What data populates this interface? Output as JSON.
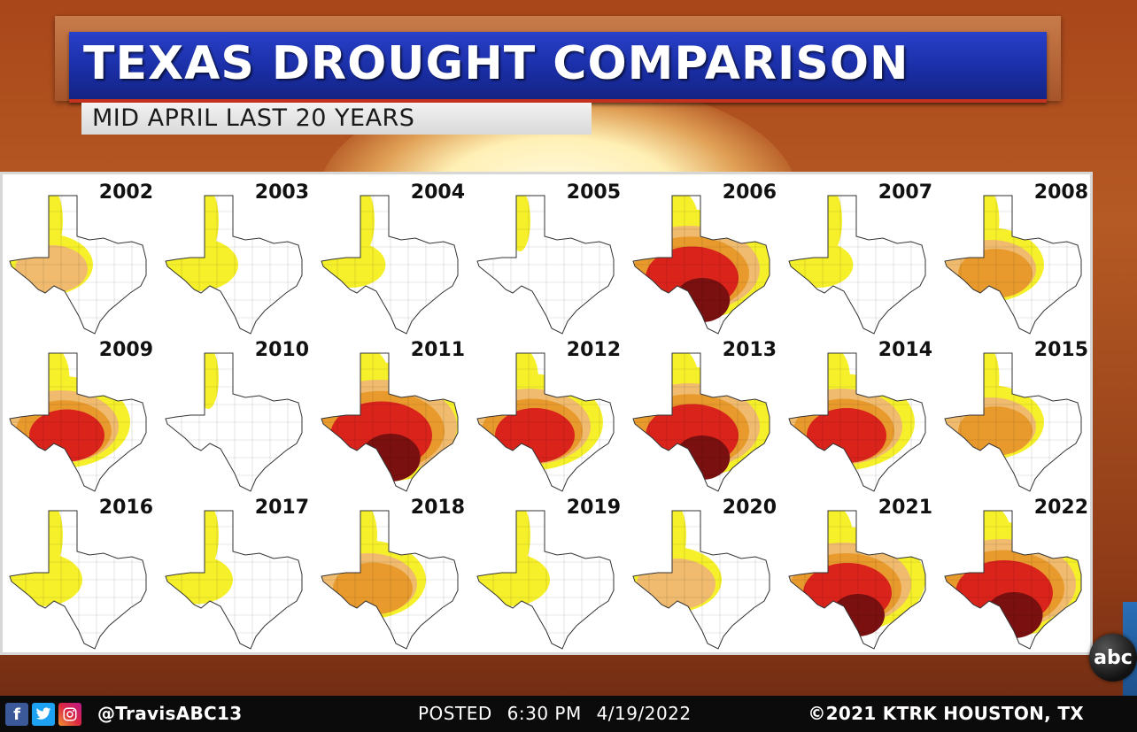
{
  "header": {
    "title": "TEXAS DROUGHT COMPARISON",
    "subtitle": "MID APRIL LAST 20 YEARS"
  },
  "maps": [
    {
      "year": "2002",
      "level": 0.3
    },
    {
      "year": "2003",
      "level": 0.2
    },
    {
      "year": "2004",
      "level": 0.12
    },
    {
      "year": "2005",
      "level": 0.05
    },
    {
      "year": "2006",
      "level": 0.85
    },
    {
      "year": "2007",
      "level": 0.12
    },
    {
      "year": "2008",
      "level": 0.45
    },
    {
      "year": "2009",
      "level": 0.65
    },
    {
      "year": "2010",
      "level": 0.03
    },
    {
      "year": "2011",
      "level": 0.95
    },
    {
      "year": "2012",
      "level": 0.7
    },
    {
      "year": "2013",
      "level": 0.85
    },
    {
      "year": "2014",
      "level": 0.7
    },
    {
      "year": "2015",
      "level": 0.45
    },
    {
      "year": "2016",
      "level": 0.2
    },
    {
      "year": "2017",
      "level": 0.15
    },
    {
      "year": "2018",
      "level": 0.5
    },
    {
      "year": "2019",
      "level": 0.2
    },
    {
      "year": "2020",
      "level": 0.35
    },
    {
      "year": "2021",
      "level": 0.8
    },
    {
      "year": "2022",
      "level": 0.9
    }
  ],
  "colors": {
    "none": "#ffffff",
    "d0": "#f5f02a",
    "d1": "#f0bb6e",
    "d2": "#e89a2c",
    "d3": "#d9231b",
    "d4": "#7a1010",
    "title_bar": "#1f34b8",
    "accent_red": "#c4321f"
  },
  "footer": {
    "social_icons": [
      "facebook-icon",
      "twitter-icon",
      "instagram-icon"
    ],
    "handle": "@TravisABC13",
    "posted_label": "POSTED",
    "posted_time": "6:30 PM",
    "posted_date": "4/19/2022",
    "copyright": "©2021 KTRK  HOUSTON, TX"
  },
  "logo_text": "abc"
}
